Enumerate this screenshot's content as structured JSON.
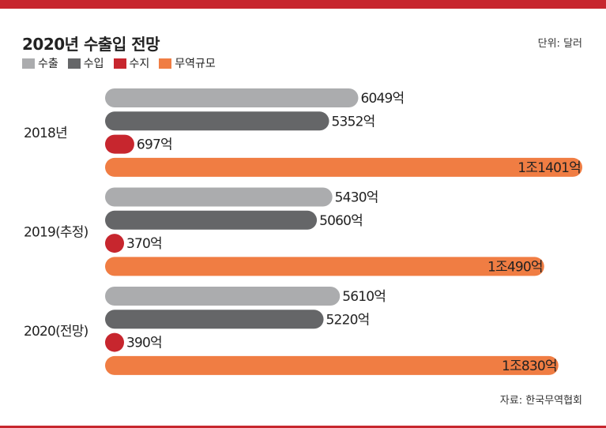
{
  "header": {
    "title": "2020년 수출입 전망",
    "unit": "단위: 달러"
  },
  "source": "자료: 한국무역협회",
  "colors": {
    "accent": "#c7262e",
    "export": "#abacae",
    "import": "#656668",
    "balance": "#c7262e",
    "volume": "#f07d43"
  },
  "chart_data": {
    "type": "bar",
    "orientation": "horizontal",
    "title": "2020년 수출입 전망",
    "unit": "단위: 달러",
    "legend_position": "top-left",
    "grid": false,
    "categories": [
      "2018년",
      "2019(추정)",
      "2020(전망)"
    ],
    "series": [
      {
        "name": "수출",
        "color": "#abacae",
        "values": [
          6049,
          5430,
          5610
        ],
        "labels": [
          "6049억",
          "5430억",
          "5610억"
        ]
      },
      {
        "name": "수입",
        "color": "#656668",
        "values": [
          5352,
          5060,
          5220
        ],
        "labels": [
          "5352억",
          "5060억",
          "5220억"
        ]
      },
      {
        "name": "수지",
        "color": "#c7262e",
        "values": [
          697,
          370,
          390
        ],
        "labels": [
          "697억",
          "370억",
          "390억"
        ]
      },
      {
        "name": "무역규모",
        "color": "#f07d43",
        "values": [
          11401,
          10490,
          10830
        ],
        "labels": [
          "1조1401억",
          "1조490억",
          "1조830억"
        ]
      }
    ]
  }
}
